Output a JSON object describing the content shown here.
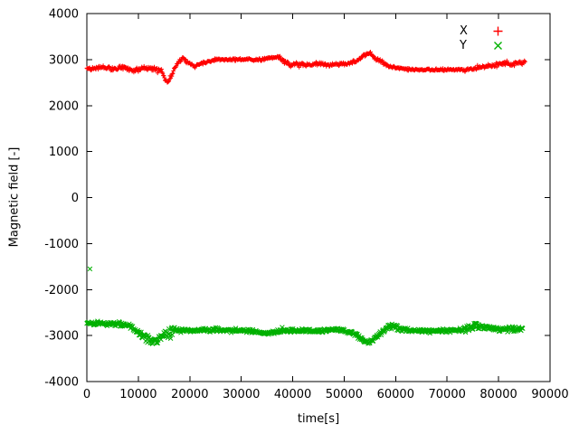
{
  "chart_data": {
    "type": "scatter",
    "title": "",
    "xlabel": "time[s]",
    "ylabel": "Magnetic field [-]",
    "xlim": [
      0,
      90000
    ],
    "ylim": [
      -4000,
      4000
    ],
    "xticks": [
      0,
      10000,
      20000,
      30000,
      40000,
      50000,
      60000,
      70000,
      80000,
      90000
    ],
    "yticks": [
      -4000,
      -3000,
      -2000,
      -1000,
      0,
      1000,
      2000,
      3000,
      4000
    ],
    "grid": false,
    "legend_position": "top-right",
    "background": "#ffffff",
    "axis_color": "#000000",
    "sample_step": 110,
    "series": [
      {
        "name": "X",
        "color": "#ff0000",
        "marker": "+",
        "t_range": [
          0,
          85200
        ],
        "trend": [
          [
            0,
            2810
          ],
          [
            3000,
            2825
          ],
          [
            5000,
            2800
          ],
          [
            7000,
            2830
          ],
          [
            9000,
            2770
          ],
          [
            11000,
            2800
          ],
          [
            13000,
            2810
          ],
          [
            14500,
            2750
          ],
          [
            15200,
            2560
          ],
          [
            15800,
            2500
          ],
          [
            16300,
            2620
          ],
          [
            17000,
            2800
          ],
          [
            17800,
            2960
          ],
          [
            18800,
            3010
          ],
          [
            19800,
            2920
          ],
          [
            20800,
            2860
          ],
          [
            22000,
            2900
          ],
          [
            23500,
            2950
          ],
          [
            25000,
            3000
          ],
          [
            27000,
            3005
          ],
          [
            29000,
            3000
          ],
          [
            31000,
            3000
          ],
          [
            33000,
            2995
          ],
          [
            34500,
            3010
          ],
          [
            36000,
            3040
          ],
          [
            37200,
            3060
          ],
          [
            38500,
            2940
          ],
          [
            39500,
            2880
          ],
          [
            41000,
            2910
          ],
          [
            43000,
            2890
          ],
          [
            45000,
            2910
          ],
          [
            47000,
            2890
          ],
          [
            49000,
            2900
          ],
          [
            51000,
            2920
          ],
          [
            52500,
            2980
          ],
          [
            54000,
            3110
          ],
          [
            55000,
            3130
          ],
          [
            56000,
            3040
          ],
          [
            57500,
            2930
          ],
          [
            59000,
            2850
          ],
          [
            60500,
            2810
          ],
          [
            62000,
            2790
          ],
          [
            64000,
            2785
          ],
          [
            66000,
            2780
          ],
          [
            68000,
            2780
          ],
          [
            70000,
            2780
          ],
          [
            72000,
            2780
          ],
          [
            74000,
            2785
          ],
          [
            76000,
            2810
          ],
          [
            78000,
            2860
          ],
          [
            80000,
            2890
          ],
          [
            81500,
            2930
          ],
          [
            82500,
            2890
          ],
          [
            83500,
            2920
          ],
          [
            85200,
            2950
          ]
        ],
        "noise": [
          [
            0,
            50
          ],
          [
            9000,
            55
          ],
          [
            14000,
            60
          ],
          [
            15500,
            85
          ],
          [
            16800,
            55
          ],
          [
            20000,
            45
          ],
          [
            24000,
            35
          ],
          [
            30000,
            30
          ],
          [
            34000,
            35
          ],
          [
            36500,
            50
          ],
          [
            39000,
            55
          ],
          [
            45000,
            45
          ],
          [
            52000,
            45
          ],
          [
            55000,
            55
          ],
          [
            58000,
            45
          ],
          [
            61000,
            30
          ],
          [
            68000,
            28
          ],
          [
            74000,
            30
          ],
          [
            77000,
            45
          ],
          [
            80000,
            55
          ],
          [
            83000,
            60
          ],
          [
            85200,
            55
          ]
        ],
        "outliers": []
      },
      {
        "name": "Y",
        "color": "#00b000",
        "marker": "x",
        "t_range": [
          0,
          84800
        ],
        "trend": [
          [
            0,
            -2720
          ],
          [
            2500,
            -2730
          ],
          [
            5000,
            -2745
          ],
          [
            7000,
            -2760
          ],
          [
            8500,
            -2790
          ],
          [
            9500,
            -2880
          ],
          [
            10500,
            -2990
          ],
          [
            11500,
            -3060
          ],
          [
            12500,
            -3110
          ],
          [
            13500,
            -3120
          ],
          [
            14500,
            -3060
          ],
          [
            15200,
            -2980
          ],
          [
            16000,
            -2960
          ],
          [
            16800,
            -2900
          ],
          [
            17500,
            -2880
          ],
          [
            19000,
            -2890
          ],
          [
            21000,
            -2885
          ],
          [
            23000,
            -2880
          ],
          [
            25000,
            -2885
          ],
          [
            27000,
            -2880
          ],
          [
            29000,
            -2890
          ],
          [
            31000,
            -2895
          ],
          [
            33000,
            -2920
          ],
          [
            34500,
            -2950
          ],
          [
            36000,
            -2930
          ],
          [
            38000,
            -2900
          ],
          [
            40000,
            -2885
          ],
          [
            42000,
            -2890
          ],
          [
            44000,
            -2900
          ],
          [
            46000,
            -2885
          ],
          [
            48000,
            -2875
          ],
          [
            50000,
            -2885
          ],
          [
            52000,
            -2960
          ],
          [
            53500,
            -3090
          ],
          [
            54700,
            -3150
          ],
          [
            55700,
            -3090
          ],
          [
            56700,
            -2980
          ],
          [
            58000,
            -2860
          ],
          [
            59000,
            -2790
          ],
          [
            60000,
            -2810
          ],
          [
            61500,
            -2870
          ],
          [
            63000,
            -2890
          ],
          [
            65000,
            -2900
          ],
          [
            67000,
            -2900
          ],
          [
            69000,
            -2895
          ],
          [
            71000,
            -2885
          ],
          [
            73000,
            -2875
          ],
          [
            74800,
            -2820
          ],
          [
            75800,
            -2780
          ],
          [
            77000,
            -2810
          ],
          [
            78500,
            -2850
          ],
          [
            80000,
            -2860
          ],
          [
            82000,
            -2850
          ],
          [
            84800,
            -2855
          ]
        ],
        "noise": [
          [
            0,
            50
          ],
          [
            8000,
            60
          ],
          [
            10000,
            80
          ],
          [
            12000,
            95
          ],
          [
            14000,
            105
          ],
          [
            15000,
            190
          ],
          [
            16500,
            195
          ],
          [
            17300,
            65
          ],
          [
            19000,
            45
          ],
          [
            25000,
            40
          ],
          [
            30000,
            42
          ],
          [
            33000,
            55
          ],
          [
            36000,
            45
          ],
          [
            40000,
            50
          ],
          [
            45000,
            45
          ],
          [
            50000,
            45
          ],
          [
            53000,
            60
          ],
          [
            56000,
            55
          ],
          [
            58000,
            95
          ],
          [
            59500,
            100
          ],
          [
            61000,
            55
          ],
          [
            64000,
            40
          ],
          [
            70000,
            42
          ],
          [
            73000,
            45
          ],
          [
            75000,
            95
          ],
          [
            76500,
            80
          ],
          [
            78000,
            55
          ],
          [
            80000,
            50
          ],
          [
            82500,
            70
          ],
          [
            84800,
            60
          ]
        ],
        "outliers": [
          [
            600,
            -1550
          ]
        ]
      }
    ]
  }
}
